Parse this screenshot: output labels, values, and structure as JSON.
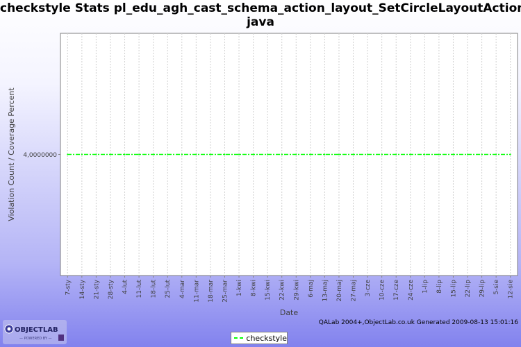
{
  "title_line1": "checkstyle  Stats pl_edu_agh_cast_schema_action_layout_SetCircleLayoutAction.",
  "title_line2": "java",
  "footer": "QALab 2004+,ObjectLab.co.uk Generated 2009-08-13 15:01:16",
  "logo": {
    "name": "OBJECTLAB",
    "tagline": "POWERED BY"
  },
  "colors": {
    "series": "#00ff00",
    "plot_bg": "#ffffff",
    "grid": "#d0d0d0"
  },
  "chart_data": {
    "type": "line",
    "title": "checkstyle  Stats pl_edu_agh_cast_schema_action_layout_SetCircleLayoutAction.java",
    "xlabel": "Date",
    "ylabel": "Violation Count / Coverage Percent",
    "y_ticks": [
      {
        "value": 4,
        "label": "4,0000000"
      }
    ],
    "ylim": [
      2,
      6
    ],
    "categories": [
      "7-sty",
      "14-sty",
      "21-sty",
      "28-sty",
      "4-lut",
      "11-lut",
      "18-lut",
      "25-lut",
      "4-mar",
      "11-mar",
      "18-mar",
      "25-mar",
      "1-kwi",
      "8-kwi",
      "15-kwi",
      "22-kwi",
      "29-kwi",
      "6-maj",
      "13-maj",
      "20-maj",
      "27-maj",
      "3-cze",
      "10-cze",
      "17-cze",
      "24-cze",
      "1-lip",
      "8-lip",
      "15-lip",
      "22-lip",
      "29-lip",
      "5-sie",
      "12-sie"
    ],
    "series": [
      {
        "name": "checkstyle",
        "values": [
          4,
          4,
          4,
          4,
          4,
          4,
          4,
          4,
          4,
          4,
          4,
          4,
          4,
          4,
          4,
          4,
          4,
          4,
          4,
          4,
          4,
          4,
          4,
          4,
          4,
          4,
          4,
          4,
          4,
          4,
          4,
          4
        ]
      }
    ],
    "grid": true,
    "legend": "bottom"
  }
}
